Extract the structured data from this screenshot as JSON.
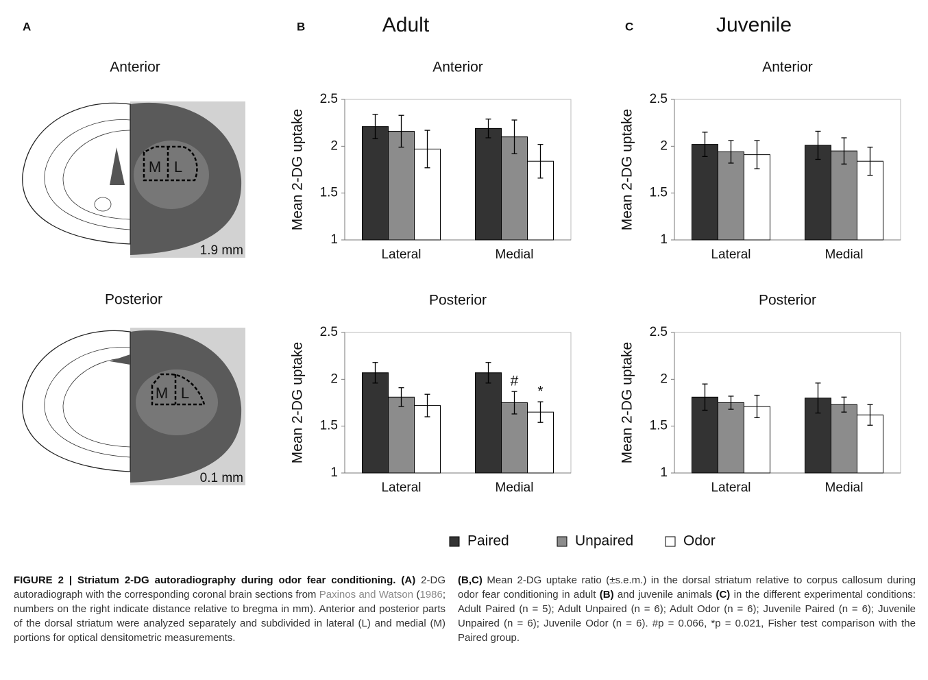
{
  "figure": {
    "panels": [
      "A",
      "B",
      "C"
    ],
    "headings": [
      "Adult",
      "Juvenile"
    ],
    "panel_a": {
      "anterior": "Anterior",
      "posterior": "Posterior",
      "anterior_depth": "1.9 mm",
      "posterior_depth": "0.1 mm",
      "medial": "M",
      "lateral": "L"
    },
    "caption_left": [
      "FIGURE 2 | Striatum 2-DG autoradiography during odor fear conditioning.",
      "(A)",
      " 2-DG autoradiograph with the corresponding coronal brain sections from ",
      "Paxinos and Watson",
      " (",
      "1986",
      "; numbers on the right indicate distance relative to bregma in mm). Anterior and posterior parts of the dorsal striatum were analyzed separately and subdivided in lateral (L) and medial (M) portions for optical densitometric measurements."
    ],
    "caption_right": [
      "(B,C)",
      " Mean 2-DG uptake ratio (±s.e.m.) in the dorsal striatum relative to corpus callosum during odor fear conditioning in adult ",
      "(B)",
      " and juvenile animals ",
      "(C)",
      " in the different experimental conditions: Adult Paired (n = 5); Adult Unpaired (n = 6); Adult Odor (n = 6); Juvenile Paired (n = 6); Juvenile Unpaired (n = 6); Juvenile Odor (n = 6). #p = 0.066, *p = 0.021, Fisher test comparison with the Paired group."
    ]
  },
  "chart_data": [
    {
      "type": "bar",
      "title": "Anterior",
      "ylabel": "Mean 2-DG uptake",
      "categories": [
        "Lateral",
        "Medial"
      ],
      "ylim": [
        1,
        2.5
      ],
      "yticks": [
        1,
        1.5,
        2,
        2.5
      ],
      "series": [
        {
          "name": "Paired",
          "color": "#333333",
          "values": [
            2.21,
            2.19
          ],
          "errors": [
            0.13,
            0.1
          ]
        },
        {
          "name": "Unpaired",
          "color": "#8c8c8c",
          "values": [
            2.16,
            2.1
          ],
          "errors": [
            0.17,
            0.18
          ]
        },
        {
          "name": "Odor",
          "color": "#ffffff",
          "values": [
            1.97,
            1.84
          ],
          "errors": [
            0.2,
            0.18
          ]
        }
      ]
    },
    {
      "type": "bar",
      "title": "Posterior",
      "ylabel": "Mean 2-DG uptake",
      "categories": [
        "Lateral",
        "Medial"
      ],
      "ylim": [
        1,
        2.5
      ],
      "yticks": [
        1,
        1.5,
        2,
        2.5
      ],
      "series": [
        {
          "name": "Paired",
          "color": "#333333",
          "values": [
            2.07,
            2.07
          ],
          "errors": [
            0.11,
            0.11
          ]
        },
        {
          "name": "Unpaired",
          "color": "#8c8c8c",
          "values": [
            1.81,
            1.75
          ],
          "errors": [
            0.1,
            0.12
          ],
          "annotations": [
            null,
            "#"
          ]
        },
        {
          "name": "Odor",
          "color": "#ffffff",
          "values": [
            1.72,
            1.65
          ],
          "errors": [
            0.12,
            0.11
          ],
          "annotations": [
            null,
            "*"
          ]
        }
      ]
    },
    {
      "type": "bar",
      "title": "Anterior",
      "ylabel": "Mean 2-DG uptake",
      "categories": [
        "Lateral",
        "Medial"
      ],
      "ylim": [
        1,
        2.5
      ],
      "yticks": [
        1,
        1.5,
        2,
        2.5
      ],
      "series": [
        {
          "name": "Paired",
          "color": "#333333",
          "values": [
            2.02,
            2.01
          ],
          "errors": [
            0.13,
            0.15
          ]
        },
        {
          "name": "Unpaired",
          "color": "#8c8c8c",
          "values": [
            1.94,
            1.95
          ],
          "errors": [
            0.12,
            0.14
          ]
        },
        {
          "name": "Odor",
          "color": "#ffffff",
          "values": [
            1.91,
            1.84
          ],
          "errors": [
            0.15,
            0.15
          ]
        }
      ]
    },
    {
      "type": "bar",
      "title": "Posterior",
      "ylabel": "Mean 2-DG uptake",
      "categories": [
        "Lateral",
        "Medial"
      ],
      "ylim": [
        1,
        2.5
      ],
      "yticks": [
        1,
        1.5,
        2,
        2.5
      ],
      "series": [
        {
          "name": "Paired",
          "color": "#333333",
          "values": [
            1.81,
            1.8
          ],
          "errors": [
            0.14,
            0.16
          ]
        },
        {
          "name": "Unpaired",
          "color": "#8c8c8c",
          "values": [
            1.75,
            1.73
          ],
          "errors": [
            0.07,
            0.08
          ]
        },
        {
          "name": "Odor",
          "color": "#ffffff",
          "values": [
            1.71,
            1.62
          ],
          "errors": [
            0.12,
            0.11
          ]
        }
      ]
    }
  ]
}
